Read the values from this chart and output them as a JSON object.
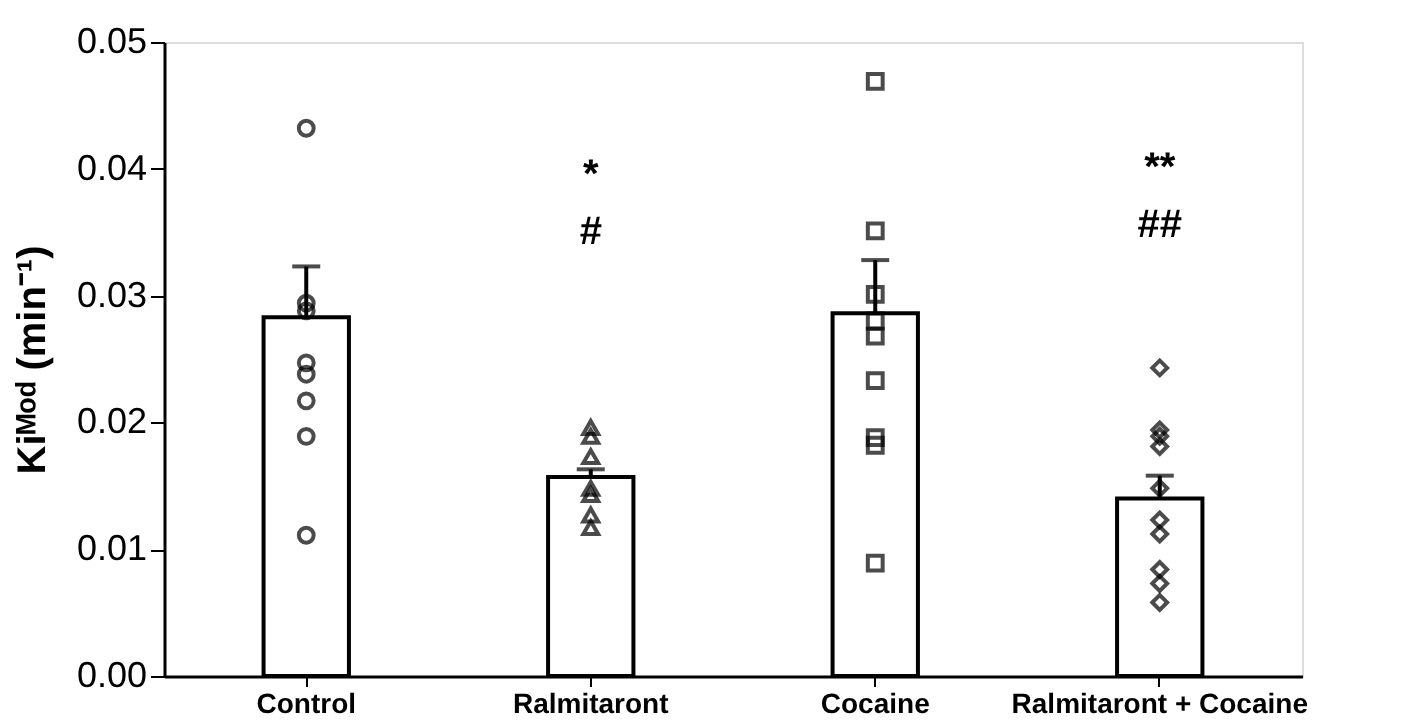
{
  "chart_data": {
    "type": "bar",
    "ylabel": "Kiᴹᵒᵈ (min⁻¹)",
    "categories": [
      "Control",
      "Ralmitaront",
      "Cocaine",
      "Ralmitaront + Cocaine"
    ],
    "series": [
      {
        "color": "#ffffff",
        "values": [
          0.0283,
          0.0157,
          0.0286,
          0.014
        ],
        "errors": [
          [
            0.0283,
            0.0323
          ],
          [
            0.0157,
            0.0163
          ],
          [
            0.0286,
            0.0328
          ],
          [
            0.014,
            0.0158
          ]
        ]
      },
      {
        "type": "scatter",
        "color": "#000000",
        "marker": "circle",
        "x": [
          "Control",
          "Control",
          "Control",
          "Control",
          "Control",
          "Control",
          "Control",
          "Control"
        ],
        "values": [
          0.0432,
          0.0294,
          0.0288,
          0.0247,
          0.0238,
          0.0217,
          0.0189,
          0.0111
        ]
      },
      {
        "type": "scatter",
        "color": "#000000",
        "marker": "triangle",
        "x": [
          "Ralmitaront",
          "Ralmitaront",
          "Ralmitaront",
          "Ralmitaront",
          "Ralmitaront",
          "Ralmitaront",
          "Ralmitaront"
        ],
        "values": [
          0.0196,
          0.0189,
          0.0173,
          0.0148,
          0.0143,
          0.0127,
          0.0117
        ]
      },
      {
        "type": "scatter",
        "color": "#000000",
        "marker": "square",
        "x": [
          "Cocaine",
          "Cocaine",
          "Cocaine",
          "Cocaine",
          "Cocaine",
          "Cocaine",
          "Cocaine",
          "Cocaine",
          "Cocaine"
        ],
        "values": [
          0.0469,
          0.0351,
          0.0301,
          0.028,
          0.0268,
          0.0233,
          0.0188,
          0.0182,
          0.0089
        ]
      },
      {
        "type": "scatter",
        "color": "#000000",
        "marker": "diamond",
        "x": [
          "Ralmitaront + Cocaine",
          "Ralmitaront + Cocaine",
          "Ralmitaront + Cocaine",
          "Ralmitaront + Cocaine",
          "Ralmitaront + Cocaine",
          "Ralmitaront + Cocaine",
          "Ralmitaront + Cocaine",
          "Ralmitaront + Cocaine",
          "Ralmitaront + Cocaine",
          "Ralmitaront + Cocaine"
        ],
        "values": [
          0.0243,
          0.0194,
          0.0189,
          0.0181,
          0.0148,
          0.0123,
          0.0112,
          0.0084,
          0.0073,
          0.0058
        ]
      }
    ],
    "ylim": [
      0,
      0.05
    ],
    "yticks": [
      {
        "value": 0,
        "label": "0.00"
      },
      0.01,
      0.02,
      0.03,
      0.04,
      0.05
    ],
    "grid": false,
    "annotations": [
      "*",
      "#",
      "**",
      "##"
    ]
  }
}
